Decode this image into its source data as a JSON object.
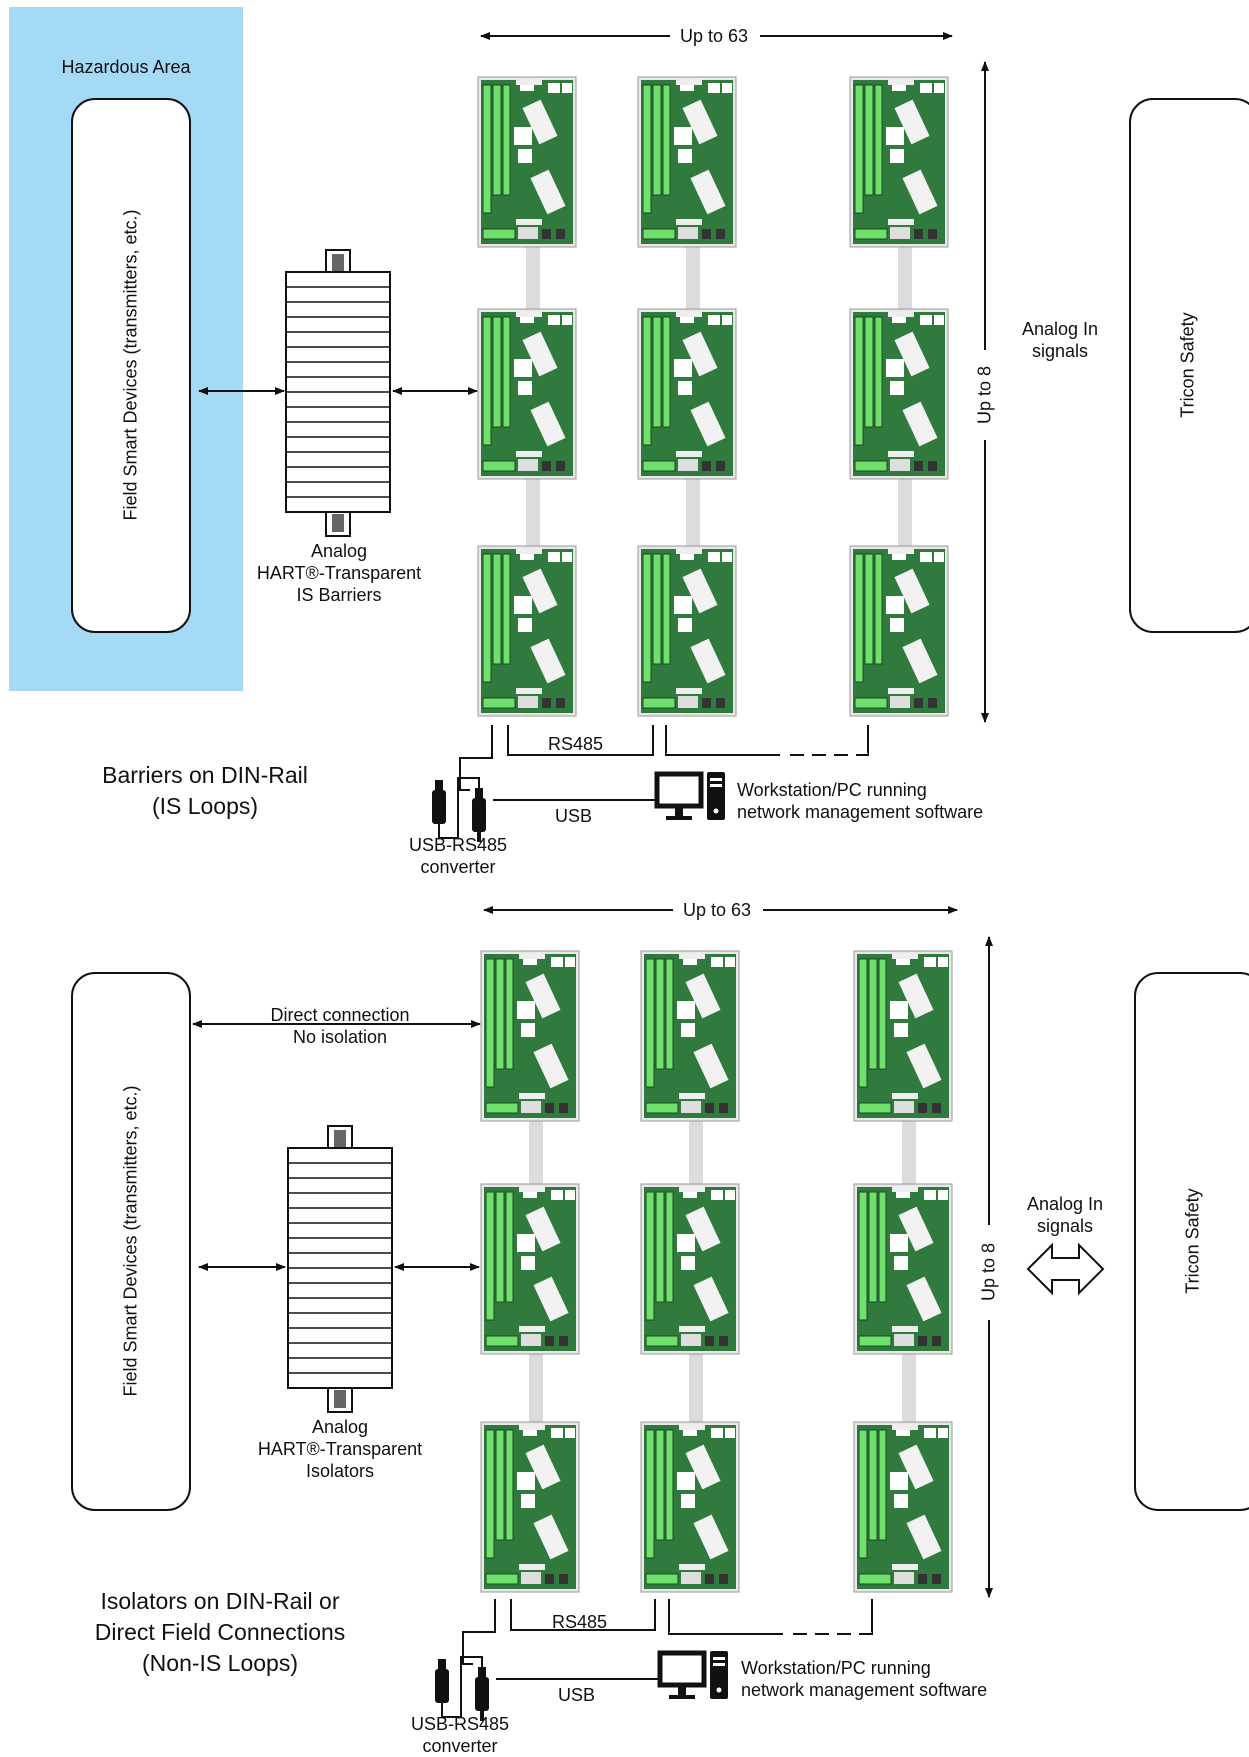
{
  "colors": {
    "hazardous_area": "#a4daf6",
    "board_green": "#2f7a3c",
    "terminal_green": "#6fe06b",
    "line": "#111111",
    "ribbon": "#dcdcdc"
  },
  "top": {
    "hazardous_area_label": "Hazardous Area",
    "field_devices_label": "Field Smart Devices (transmitters, etc.)",
    "barrier_label_lines": [
      "Analog",
      "HART®-Transparent",
      "IS Barriers"
    ],
    "columns_label": "Up to 63",
    "rows_label": "Up to 8",
    "signals_label_lines": [
      "Analog In",
      "signals"
    ],
    "tricon_label": "Tricon Safety",
    "rs485_label": "RS485",
    "usb_label": "USB",
    "converter_label_lines": [
      "USB-RS485",
      "converter"
    ],
    "workstation_label_lines": [
      "Workstation/PC running",
      "network management software"
    ],
    "title_lines": [
      "Barriers on DIN-Rail",
      "(IS Loops)"
    ]
  },
  "bottom": {
    "field_devices_label": "Field Smart Devices (transmitters, etc.)",
    "direct_label_lines": [
      "Direct connection",
      "No isolation"
    ],
    "isolator_label_lines": [
      "Analog",
      "HART®-Transparent",
      "Isolators"
    ],
    "columns_label": "Up to 63",
    "rows_label": "Up to 8",
    "signals_label_lines": [
      "Analog In",
      "signals"
    ],
    "tricon_label": "Tricon Safety",
    "rs485_label": "RS485",
    "usb_label": "USB",
    "converter_label_lines": [
      "USB-RS485",
      "converter"
    ],
    "workstation_label_lines": [
      "Workstation/PC running",
      "network management software"
    ],
    "title_lines": [
      "Isolators on DIN-Rail or",
      "Direct Field Connections",
      "(Non-IS Loops)"
    ]
  },
  "icons": {
    "board": "multiplexer-board-icon",
    "din_rail_module": "din-rail-module-icon",
    "usb_converter": "usb-rs485-converter-icon",
    "workstation": "workstation-pc-icon",
    "double_arrow": "bidirectional-arrow-icon"
  }
}
